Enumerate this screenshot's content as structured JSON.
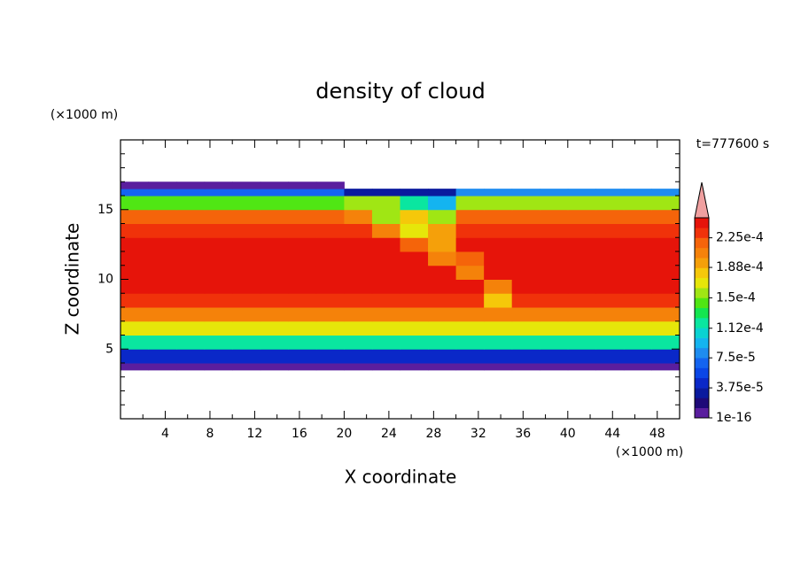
{
  "chart_data": {
    "type": "contour",
    "title": "density of cloud",
    "x_label": "X coordinate",
    "y_label": "Z coordinate",
    "x_unit": "(×1000 m)",
    "y_unit": "(×1000 m)",
    "annotation": "t=777600 s",
    "xlim": [
      0,
      50
    ],
    "ylim": [
      0,
      20
    ],
    "xticks": [
      4,
      8,
      12,
      16,
      20,
      24,
      28,
      32,
      36,
      40,
      44,
      48
    ],
    "xminor_ticks": [
      2,
      6,
      10,
      14,
      18,
      22,
      26,
      30,
      34,
      38,
      42,
      46,
      50
    ],
    "yticks": [
      5,
      10,
      15
    ],
    "yminor_ticks": [
      1,
      2,
      3,
      4,
      6,
      7,
      8,
      9,
      11,
      12,
      13,
      14,
      16,
      17,
      18,
      19
    ],
    "x_edges": [
      0,
      2.5,
      5,
      7.5,
      10,
      12.5,
      15,
      17.5,
      20,
      22.5,
      25,
      27.5,
      30,
      32.5,
      35,
      37.5,
      40,
      42.5,
      45,
      47.5,
      50
    ],
    "z_edges": [
      3.5,
      4,
      5,
      6,
      7,
      8,
      9,
      10,
      11,
      12,
      13,
      14,
      15,
      16,
      16.5,
      17
    ],
    "z": [
      [
        5e-06,
        5e-06,
        5e-06,
        5e-06,
        5e-06,
        5e-06,
        5e-06,
        5e-06,
        5e-06,
        5e-06,
        5e-06,
        5e-06,
        5e-06,
        5e-06,
        5e-06,
        5e-06,
        5e-06,
        5e-06,
        5e-06,
        5e-06
      ],
      [
        4e-05,
        4e-05,
        4e-05,
        4e-05,
        4e-05,
        4e-05,
        4e-05,
        4e-05,
        4e-05,
        4e-05,
        4e-05,
        4e-05,
        4e-05,
        4e-05,
        4e-05,
        4e-05,
        4e-05,
        4e-05,
        4e-05,
        4e-05
      ],
      [
        0.00012,
        0.00012,
        0.00012,
        0.00012,
        0.00012,
        0.00012,
        0.00012,
        0.00012,
        0.00012,
        0.00012,
        0.00012,
        0.00012,
        0.00012,
        0.00012,
        0.00012,
        0.00012,
        0.00012,
        0.00012,
        0.00012,
        0.00012
      ],
      [
        0.00017,
        0.00017,
        0.00017,
        0.00017,
        0.00017,
        0.00017,
        0.00017,
        0.00017,
        0.00017,
        0.00017,
        0.00017,
        0.00017,
        0.00017,
        0.00017,
        0.00017,
        0.00017,
        0.00017,
        0.00017,
        0.00017,
        0.00017
      ],
      [
        0.000205,
        0.000205,
        0.000205,
        0.000205,
        0.000205,
        0.000205,
        0.000205,
        0.000205,
        0.000205,
        0.000205,
        0.000205,
        0.000205,
        0.000205,
        0.000205,
        0.000205,
        0.000205,
        0.000205,
        0.000205,
        0.000205,
        0.000205
      ],
      [
        0.000225,
        0.000225,
        0.000225,
        0.000225,
        0.000225,
        0.000225,
        0.000225,
        0.000225,
        0.000225,
        0.000225,
        0.000225,
        0.000225,
        0.000225,
        0.00018,
        0.000225,
        0.000225,
        0.000225,
        0.000225,
        0.000225,
        0.000225
      ],
      [
        0.00024,
        0.00024,
        0.00024,
        0.00024,
        0.00024,
        0.00024,
        0.00024,
        0.00024,
        0.00024,
        0.00024,
        0.00024,
        0.00024,
        0.00024,
        0.0002,
        0.00024,
        0.00024,
        0.00024,
        0.00024,
        0.00024,
        0.00024
      ],
      [
        0.000245,
        0.000245,
        0.000245,
        0.000245,
        0.000245,
        0.000245,
        0.000245,
        0.000245,
        0.000245,
        0.000245,
        0.000245,
        0.000245,
        0.0002,
        0.000245,
        0.000245,
        0.000245,
        0.000245,
        0.000245,
        0.000245,
        0.000245
      ],
      [
        0.000245,
        0.000245,
        0.000245,
        0.000245,
        0.000245,
        0.000245,
        0.000245,
        0.000245,
        0.000245,
        0.000245,
        0.000245,
        0.00021,
        0.00022,
        0.000245,
        0.000245,
        0.000245,
        0.000245,
        0.000245,
        0.000245,
        0.000245
      ],
      [
        0.00024,
        0.00024,
        0.00024,
        0.00024,
        0.00024,
        0.00024,
        0.00024,
        0.00024,
        0.00024,
        0.00024,
        0.00022,
        0.00019,
        0.00024,
        0.00024,
        0.00024,
        0.00024,
        0.00024,
        0.00024,
        0.00024,
        0.00024
      ],
      [
        0.000235,
        0.000235,
        0.000235,
        0.000235,
        0.000235,
        0.000235,
        0.000235,
        0.000235,
        0.000235,
        0.0002,
        0.00017,
        0.00019,
        0.000235,
        0.000235,
        0.000235,
        0.000235,
        0.000235,
        0.000235,
        0.000235,
        0.000235
      ],
      [
        0.00022,
        0.00022,
        0.00022,
        0.00022,
        0.00022,
        0.00022,
        0.00022,
        0.00022,
        0.00021,
        0.00016,
        0.00018,
        0.00015,
        0.00022,
        0.00022,
        0.00022,
        0.00022,
        0.00022,
        0.00022,
        0.00022,
        0.00022
      ],
      [
        0.00014,
        0.00014,
        0.00014,
        0.00014,
        0.00014,
        0.00014,
        0.00014,
        0.00014,
        0.00015,
        0.00015,
        0.00012,
        9e-05,
        0.00016,
        0.00016,
        0.00016,
        0.00016,
        0.00016,
        0.00016,
        0.00016,
        0.00016
      ],
      [
        7e-05,
        7e-05,
        7e-05,
        7e-05,
        7e-05,
        7e-05,
        7e-05,
        7e-05,
        3e-05,
        3e-05,
        3e-05,
        3e-05,
        8e-05,
        8e-05,
        8e-05,
        8e-05,
        8e-05,
        8e-05,
        8e-05,
        8e-05
      ],
      [
        1e-05,
        1e-05,
        1e-05,
        1e-05,
        1e-05,
        1e-05,
        1e-05,
        1e-05,
        null,
        null,
        null,
        null,
        null,
        null,
        null,
        null,
        null,
        null,
        null,
        null
      ]
    ],
    "levels": [
      1e-16,
      1.25e-05,
      2.5e-05,
      3.75e-05,
      5e-05,
      6.25e-05,
      7.5e-05,
      8.75e-05,
      0.0001,
      0.0001125,
      0.000125,
      0.0001375,
      0.00015,
      0.0001625,
      0.000175,
      0.0001875,
      0.0002,
      0.0002125,
      0.000225,
      0.0002375,
      0.00025
    ],
    "colors": [
      "#5a1e9e",
      "#1e0a78",
      "#0a1a9e",
      "#0a28c8",
      "#0a46e6",
      "#1464f0",
      "#1e8cf0",
      "#14b4f0",
      "#0ad2d2",
      "#0ae6a0",
      "#14e650",
      "#50e614",
      "#a0e614",
      "#e6e60a",
      "#f5c80a",
      "#f5a00a",
      "#f5820a",
      "#f5640a",
      "#f0320a",
      "#e6140a"
    ],
    "extend_color": "#f0a0a0",
    "cticks": [
      {
        "value": 1e-16,
        "label": "1e-16"
      },
      {
        "value": 3.75e-05,
        "label": "3.75e-5"
      },
      {
        "value": 7.5e-05,
        "label": "7.5e-5"
      },
      {
        "value": 0.000112,
        "label": "1.12e-4"
      },
      {
        "value": 0.00015,
        "label": "1.5e-4"
      },
      {
        "value": 0.000188,
        "label": "1.88e-4"
      },
      {
        "value": 0.000225,
        "label": "2.25e-4"
      }
    ]
  }
}
